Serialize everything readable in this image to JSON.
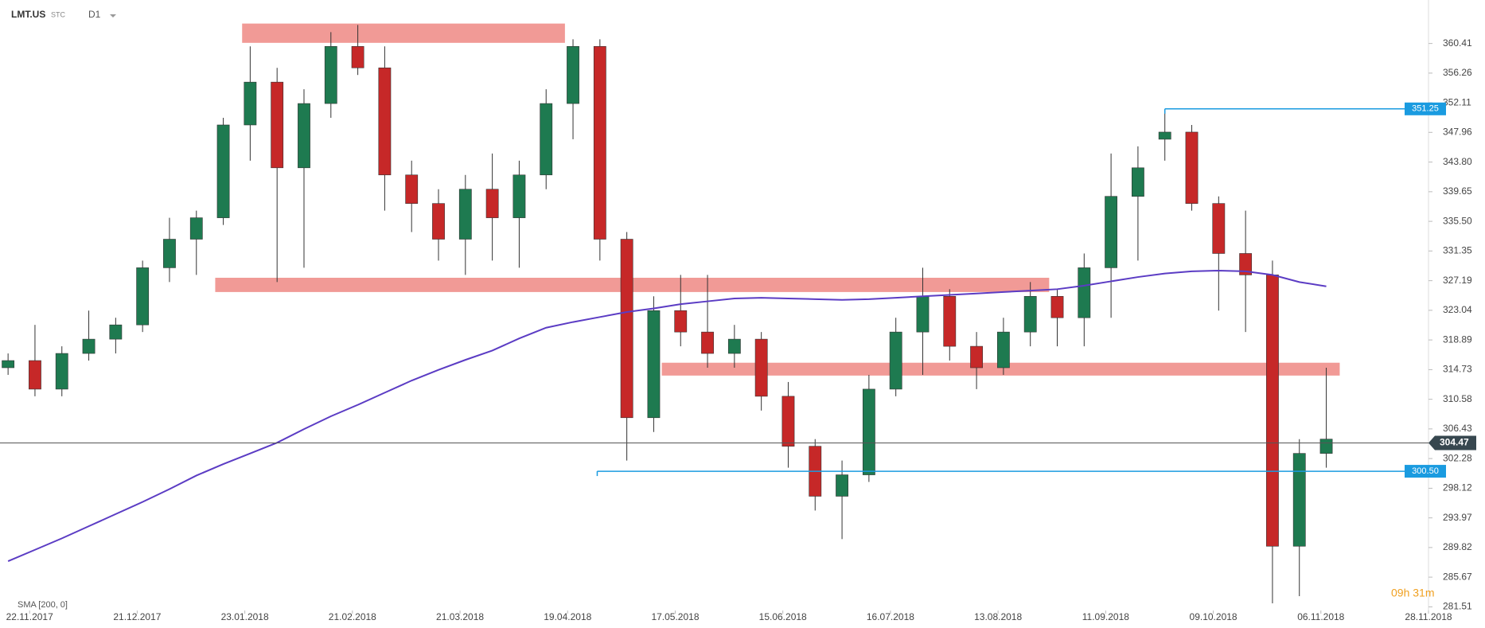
{
  "chart_data": {
    "type": "candlestick",
    "symbol": "LMT.US",
    "source": "STC",
    "interval": "D1",
    "open": [
      315,
      316,
      312,
      317,
      319,
      321,
      329,
      333,
      336,
      349,
      355,
      343,
      352,
      360,
      357,
      342,
      338,
      333,
      340,
      336,
      342,
      352,
      360,
      333,
      308,
      323,
      320,
      317,
      319,
      311,
      304,
      297,
      300,
      312,
      320,
      325,
      318,
      315,
      320,
      325,
      322,
      329,
      339,
      347,
      348,
      338,
      331,
      328,
      290,
      303
    ],
    "high": [
      317,
      321,
      318,
      323,
      322,
      330,
      336,
      337,
      350,
      360,
      357,
      354,
      362,
      363,
      360,
      344,
      340,
      342,
      345,
      344,
      354,
      361,
      361,
      334,
      325,
      328,
      328,
      321,
      320,
      313,
      305,
      302,
      314,
      322,
      329,
      326,
      320,
      322,
      327,
      326,
      331,
      345,
      346,
      351,
      349,
      339,
      337,
      330,
      305,
      315
    ],
    "low": [
      314,
      311,
      311,
      316,
      317,
      320,
      327,
      328,
      335,
      344,
      327,
      329,
      350,
      356,
      337,
      334,
      330,
      328,
      330,
      329,
      340,
      347,
      330,
      302,
      306,
      318,
      315,
      315,
      309,
      301,
      295,
      291,
      299,
      311,
      314,
      316,
      312,
      314,
      318,
      318,
      318,
      322,
      330,
      344,
      337,
      323,
      320,
      282,
      283,
      301
    ],
    "close": [
      316,
      312,
      317,
      319,
      321,
      329,
      333,
      336,
      349,
      355,
      343,
      352,
      360,
      357,
      342,
      338,
      333,
      340,
      336,
      342,
      352,
      360,
      333,
      308,
      323,
      320,
      317,
      319,
      311,
      304,
      297,
      300,
      312,
      320,
      325,
      318,
      315,
      320,
      325,
      322,
      329,
      339,
      343,
      348,
      338,
      331,
      328,
      290,
      303,
      305
    ],
    "up_color": "#1e7a50",
    "down_color": "#c62828",
    "sma": {
      "name": "SMA [200, 0]",
      "color": "#5b3cc4",
      "values": [
        287.9,
        289.5,
        291.1,
        292.8,
        294.5,
        296.2,
        298.0,
        299.9,
        301.5,
        303.0,
        304.5,
        306.4,
        308.2,
        309.8,
        311.5,
        313.2,
        314.7,
        316.1,
        317.4,
        319.1,
        320.6,
        321.4,
        322.1,
        322.8,
        323.3,
        323.9,
        324.3,
        324.7,
        324.8,
        324.7,
        324.6,
        324.5,
        324.6,
        324.8,
        325.0,
        325.2,
        325.4,
        325.6,
        325.8,
        326.0,
        326.5,
        327.1,
        327.7,
        328.2,
        328.5,
        328.6,
        328.5,
        328.0,
        327.0,
        326.4
      ]
    },
    "zones": [
      {
        "x": [
          8.7,
          20.7
        ],
        "y": [
          360.5,
          363.2
        ]
      },
      {
        "x": [
          7.7,
          38.7
        ],
        "y": [
          325.6,
          327.6
        ]
      },
      {
        "x": [
          24.3,
          49.5
        ],
        "y": [
          313.9,
          315.7
        ]
      }
    ],
    "zone_color": "#f19a96",
    "levels": {
      "values": [
        351.25,
        300.5
      ],
      "value_labels": [
        "351.25",
        "300.50"
      ],
      "start": [
        43.0,
        21.9
      ],
      "color": "#1a9be0"
    },
    "last": 304.47,
    "timer": "09h 31m",
    "xlim": [
      -0.3,
      52.8
    ],
    "ylim": [
      281.0,
      366.5
    ],
    "xticks": [
      {
        "value": 0.8,
        "label": "22.11.2017"
      },
      {
        "value": 4.8,
        "label": "21.12.2017"
      },
      {
        "value": 8.8,
        "label": "23.01.2018"
      },
      {
        "value": 12.8,
        "label": "21.02.2018"
      },
      {
        "value": 16.8,
        "label": "21.03.2018"
      },
      {
        "value": 20.8,
        "label": "19.04.2018"
      },
      {
        "value": 24.8,
        "label": "17.05.2018"
      },
      {
        "value": 28.8,
        "label": "15.06.2018"
      },
      {
        "value": 32.8,
        "label": "16.07.2018"
      },
      {
        "value": 36.8,
        "label": "13.08.2018"
      },
      {
        "value": 40.8,
        "label": "11.09.2018"
      },
      {
        "value": 44.8,
        "label": "09.10.2018"
      },
      {
        "value": 48.8,
        "label": "06.11.2018"
      },
      {
        "value": 52.8,
        "label": "28.11.2018"
      }
    ],
    "yticks": [
      360.41,
      356.26,
      352.11,
      347.96,
      {
        "value": 343.8,
        "label": "343.80"
      },
      339.65,
      {
        "value": 335.5,
        "label": "335.50"
      },
      331.35,
      327.19,
      323.04,
      318.89,
      314.73,
      310.58,
      306.43,
      302.28,
      298.12,
      293.97,
      289.82,
      285.67,
      281.51
    ]
  }
}
